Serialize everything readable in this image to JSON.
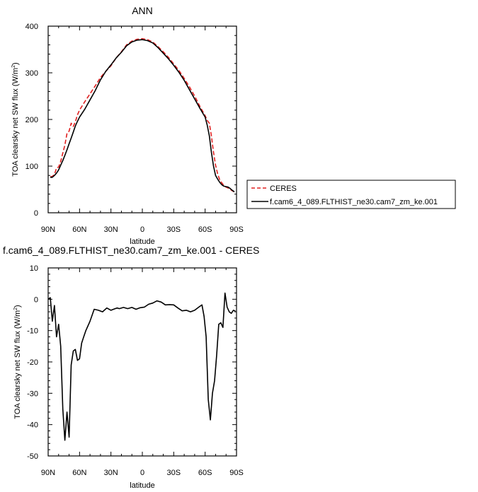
{
  "chart_data": [
    {
      "type": "line",
      "title": "ANN",
      "xlabel": "latitude",
      "ylabel": "TOA clearsky net SW flux (W/m",
      "ylabel_sup": "2",
      "ylabel_end": ")",
      "xlim": [
        90,
        -90
      ],
      "ylim": [
        0,
        400
      ],
      "xticks": [
        90,
        60,
        30,
        0,
        -30,
        -60,
        -90
      ],
      "xtick_labels": [
        "90N",
        "60N",
        "30N",
        "0",
        "30S",
        "60S",
        "90S"
      ],
      "yticks": [
        0,
        100,
        200,
        300,
        400
      ],
      "ytick_labels": [
        "0",
        "100",
        "200",
        "300",
        "400"
      ],
      "legend_position": "right",
      "series": [
        {
          "name": "CERES",
          "color": "#e02020",
          "dash": "dashed",
          "x": [
            88,
            86,
            84,
            82,
            80,
            78,
            76,
            74,
            72,
            70,
            68,
            66,
            64,
            62,
            60,
            55,
            50,
            45,
            40,
            35,
            30,
            25,
            20,
            15,
            10,
            5,
            0,
            -5,
            -10,
            -15,
            -20,
            -25,
            -30,
            -35,
            -40,
            -45,
            -50,
            -55,
            -60,
            -62,
            -64,
            -66,
            -68,
            -70,
            -72,
            -74,
            -76,
            -78,
            -80,
            -82,
            -84,
            -86,
            -88
          ],
          "y": [
            77,
            78,
            82,
            96,
            98,
            110,
            128,
            145,
            170,
            175,
            192,
            185,
            195,
            210,
            220,
            238,
            255,
            272,
            290,
            303,
            315,
            332,
            345,
            360,
            368,
            372,
            373,
            371,
            366,
            356,
            345,
            333,
            319,
            305,
            288,
            270,
            250,
            228,
            208,
            198,
            192,
            165,
            130,
            102,
            83,
            70,
            64,
            58,
            55,
            53,
            50,
            47,
            45
          ]
        },
        {
          "name": "f.cam6_4_089.FLTHIST_ne30.cam7_zm_ke.001",
          "color": "#000000",
          "dash": "solid",
          "x": [
            88,
            86,
            84,
            82,
            80,
            78,
            76,
            74,
            72,
            70,
            68,
            66,
            64,
            62,
            60,
            55,
            50,
            45,
            40,
            35,
            30,
            25,
            20,
            15,
            10,
            5,
            0,
            -5,
            -10,
            -15,
            -20,
            -25,
            -30,
            -35,
            -40,
            -45,
            -50,
            -55,
            -60,
            -62,
            -64,
            -66,
            -68,
            -70,
            -72,
            -74,
            -76,
            -78,
            -80,
            -82,
            -84,
            -86,
            -88
          ],
          "y": [
            76,
            76,
            80,
            85,
            92,
            102,
            112,
            123,
            135,
            148,
            160,
            173,
            186,
            196,
            205,
            222,
            242,
            262,
            285,
            303,
            317,
            332,
            344,
            358,
            366,
            370,
            371,
            369,
            364,
            354,
            342,
            330,
            316,
            301,
            284,
            264,
            244,
            224,
            205,
            188,
            165,
            130,
            100,
            80,
            72,
            65,
            60,
            57,
            56,
            55,
            52,
            48,
            45
          ]
        }
      ]
    },
    {
      "type": "line",
      "title": "f.cam6_4_089.FLTHIST_ne30.cam7_zm_ke.001 - CERES",
      "xlabel": "latitude",
      "ylabel": "TOA clearsky net SW flux (W/m",
      "ylabel_sup": "2",
      "ylabel_end": ")",
      "xlim": [
        90,
        -90
      ],
      "ylim": [
        -50,
        10
      ],
      "xticks": [
        90,
        60,
        30,
        0,
        -30,
        -60,
        -90
      ],
      "xtick_labels": [
        "90N",
        "60N",
        "30N",
        "0",
        "30S",
        "60S",
        "90S"
      ],
      "yticks": [
        -50,
        -40,
        -30,
        -20,
        -10,
        0,
        10
      ],
      "ytick_labels": [
        "-50",
        "-40",
        "-30",
        "-20",
        "-10",
        "0",
        "10"
      ],
      "series": [
        {
          "color": "#000000",
          "dash": "solid",
          "x": [
            90,
            88,
            86,
            84,
            82,
            80,
            78,
            76,
            74,
            72,
            70,
            68,
            66,
            64,
            62,
            60,
            58,
            56,
            54,
            52,
            50,
            46,
            42,
            38,
            34,
            30,
            26,
            24,
            22,
            18,
            14,
            10,
            6,
            2,
            -2,
            -6,
            -10,
            -14,
            -18,
            -22,
            -26,
            -30,
            -34,
            -38,
            -42,
            -46,
            -50,
            -54,
            -57,
            -59,
            -61,
            -63,
            -65,
            -67,
            -69,
            -71,
            -73,
            -75,
            -77,
            -79,
            -81,
            -83,
            -85,
            -87,
            -89
          ],
          "y": [
            0,
            0.5,
            -7,
            -2,
            -12,
            -8,
            -15,
            -35,
            -45,
            -36,
            -44,
            -21,
            -16.5,
            -16,
            -19.5,
            -19,
            -14,
            -12,
            -10,
            -8.5,
            -7,
            -3.2,
            -3.5,
            -4.0,
            -2.8,
            -3.5,
            -3.0,
            -2.8,
            -3.0,
            -2.6,
            -3.0,
            -2.6,
            -3.2,
            -2.7,
            -2.5,
            -1.6,
            -1.2,
            -0.5,
            -0.9,
            -1.8,
            -1.7,
            -1.8,
            -2.8,
            -3.7,
            -3.5,
            -4.0,
            -3.5,
            -2.5,
            -1.8,
            -5.5,
            -12,
            -32,
            -38.5,
            -30,
            -26,
            -18,
            -8,
            -7.5,
            -9,
            2,
            -2.5,
            -4,
            -4.5,
            -3.5,
            -3.8
          ]
        }
      ]
    }
  ]
}
